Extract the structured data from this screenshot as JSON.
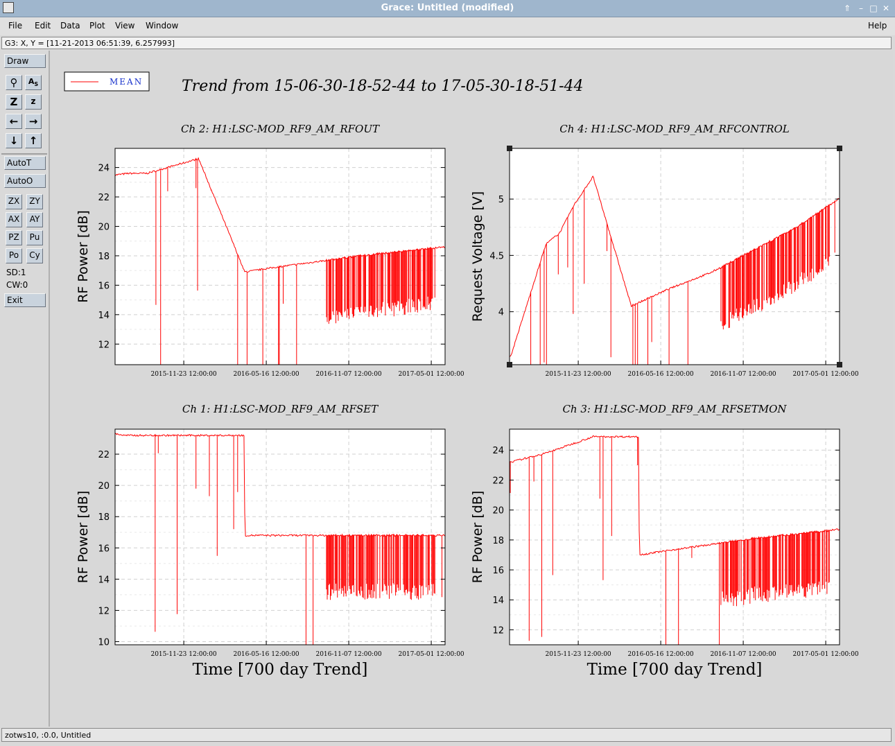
{
  "window": {
    "title": "Grace: Untitled (modified)"
  },
  "menu": {
    "file": "File",
    "edit": "Edit",
    "data": "Data",
    "plot": "Plot",
    "view": "View",
    "window": "Window",
    "help": "Help"
  },
  "locator": "G3: X, Y = [11-21-2013 06:51:39, 6.257993]",
  "toolbox": {
    "draw": "Draw",
    "autot": "AutoT",
    "autoo": "AutoO",
    "exit": "Exit",
    "zx": "ZX",
    "zy": "ZY",
    "ax": "AX",
    "ay": "AY",
    "pz": "PZ",
    "pu": "Pu",
    "po": "Po",
    "cy": "Cy",
    "sd": "SD:1",
    "cw": "CW:0"
  },
  "canvas": {
    "title": "Trend from 15-06-30-18-52-44 to 17-05-30-18-51-44",
    "legend": "MEAN",
    "time_label": "Time [700 day Trend]"
  },
  "status_bar": "zotws10, :0.0, Untitled",
  "colors": {
    "trace": "#ff0000",
    "grid": "#d0d0d0",
    "plot_bg": "#ffffff",
    "canvas_bg": "#d8d8d8"
  },
  "chart_data": [
    {
      "type": "line",
      "title": "Ch 2: H1:LSC-MOD_RF9_AM_RFOUT",
      "xlabel": "",
      "ylabel": "RF Power [dB]",
      "x_ticks": [
        "2015-11-23 12:00:00",
        "2016-05-16 12:00:00",
        "2016-11-07 12:00:00",
        "2017-05-01 12:00:00"
      ],
      "y_ticks": [
        12,
        14,
        16,
        18,
        20,
        22,
        24
      ],
      "ylim": [
        10.6,
        25.3
      ],
      "series": [
        {
          "x": [
            "2015-07-03",
            "2015-07-30",
            "2015-09-06",
            "2015-12-25",
            "2016-04-01",
            "2016-06-01",
            "2016-09-01",
            "2016-12-01",
            "2017-03-01",
            "2017-05-28"
          ],
          "y": [
            23.5,
            23.6,
            23.6,
            24.6,
            16.9,
            17.2,
            17.6,
            18.0,
            18.3,
            18.6
          ]
        }
      ],
      "grid": true
    },
    {
      "type": "line",
      "title": "Ch 4: H1:LSC-MOD_RF9_AM_RFCONTROL",
      "xlabel": "",
      "ylabel": "Request Voltage [V]",
      "x_ticks": [
        "2015-11-23 12:00:00",
        "2016-05-16 12:00:00",
        "2016-11-07 12:00:00",
        "2017-05-01 12:00:00"
      ],
      "y_ticks": [
        4,
        4.5,
        5
      ],
      "ylim": [
        3.53,
        5.45
      ],
      "series": [
        {
          "x": [
            "2015-07-03",
            "2015-09-16",
            "2015-10-15",
            "2015-11-15",
            "2015-12-25",
            "2016-03-15",
            "2016-06-01",
            "2016-09-01",
            "2016-12-01",
            "2017-03-01",
            "2017-05-28"
          ],
          "y": [
            3.6,
            4.6,
            4.7,
            4.95,
            5.2,
            4.05,
            4.2,
            4.35,
            4.55,
            4.75,
            5.0
          ]
        }
      ],
      "grid": true
    },
    {
      "type": "line",
      "title": "Ch 1: H1:LSC-MOD_RF9_AM_RFSET",
      "xlabel": "Time [700 day Trend]",
      "ylabel": "RF Power [dB]",
      "x_ticks": [
        "2015-11-23 12:00:00",
        "2016-05-16 12:00:00",
        "2016-11-07 12:00:00",
        "2017-05-01 12:00:00"
      ],
      "y_ticks": [
        10,
        12,
        14,
        16,
        18,
        20,
        22
      ],
      "ylim": [
        9.8,
        23.6
      ],
      "series": [
        {
          "x": [
            "2015-07-03",
            "2015-07-20",
            "2016-03-31",
            "2016-04-01",
            "2016-06-01",
            "2016-09-01",
            "2016-12-01",
            "2017-03-01",
            "2017-05-28"
          ],
          "y": [
            23.3,
            23.2,
            23.2,
            16.8,
            16.8,
            16.8,
            16.8,
            16.8,
            16.8
          ]
        }
      ],
      "grid": true
    },
    {
      "type": "line",
      "title": "Ch 3: H1:LSC-MOD_RF9_AM_RFSETMON",
      "xlabel": "Time [700 day Trend]",
      "ylabel": "RF Power [dB]",
      "x_ticks": [
        "2015-11-23 12:00:00",
        "2016-05-16 12:00:00",
        "2016-11-07 12:00:00",
        "2017-05-01 12:00:00"
      ],
      "y_ticks": [
        12,
        14,
        16,
        18,
        20,
        22,
        24
      ],
      "ylim": [
        11.0,
        25.4
      ],
      "series": [
        {
          "x": [
            "2015-07-03",
            "2015-09-16",
            "2015-12-25",
            "2016-03-31",
            "2016-04-01",
            "2016-06-01",
            "2016-09-01",
            "2016-12-01",
            "2017-03-01",
            "2017-05-28"
          ],
          "y": [
            23.2,
            23.8,
            24.9,
            24.9,
            17.0,
            17.3,
            17.7,
            18.1,
            18.4,
            18.7
          ]
        }
      ],
      "grid": true
    }
  ]
}
